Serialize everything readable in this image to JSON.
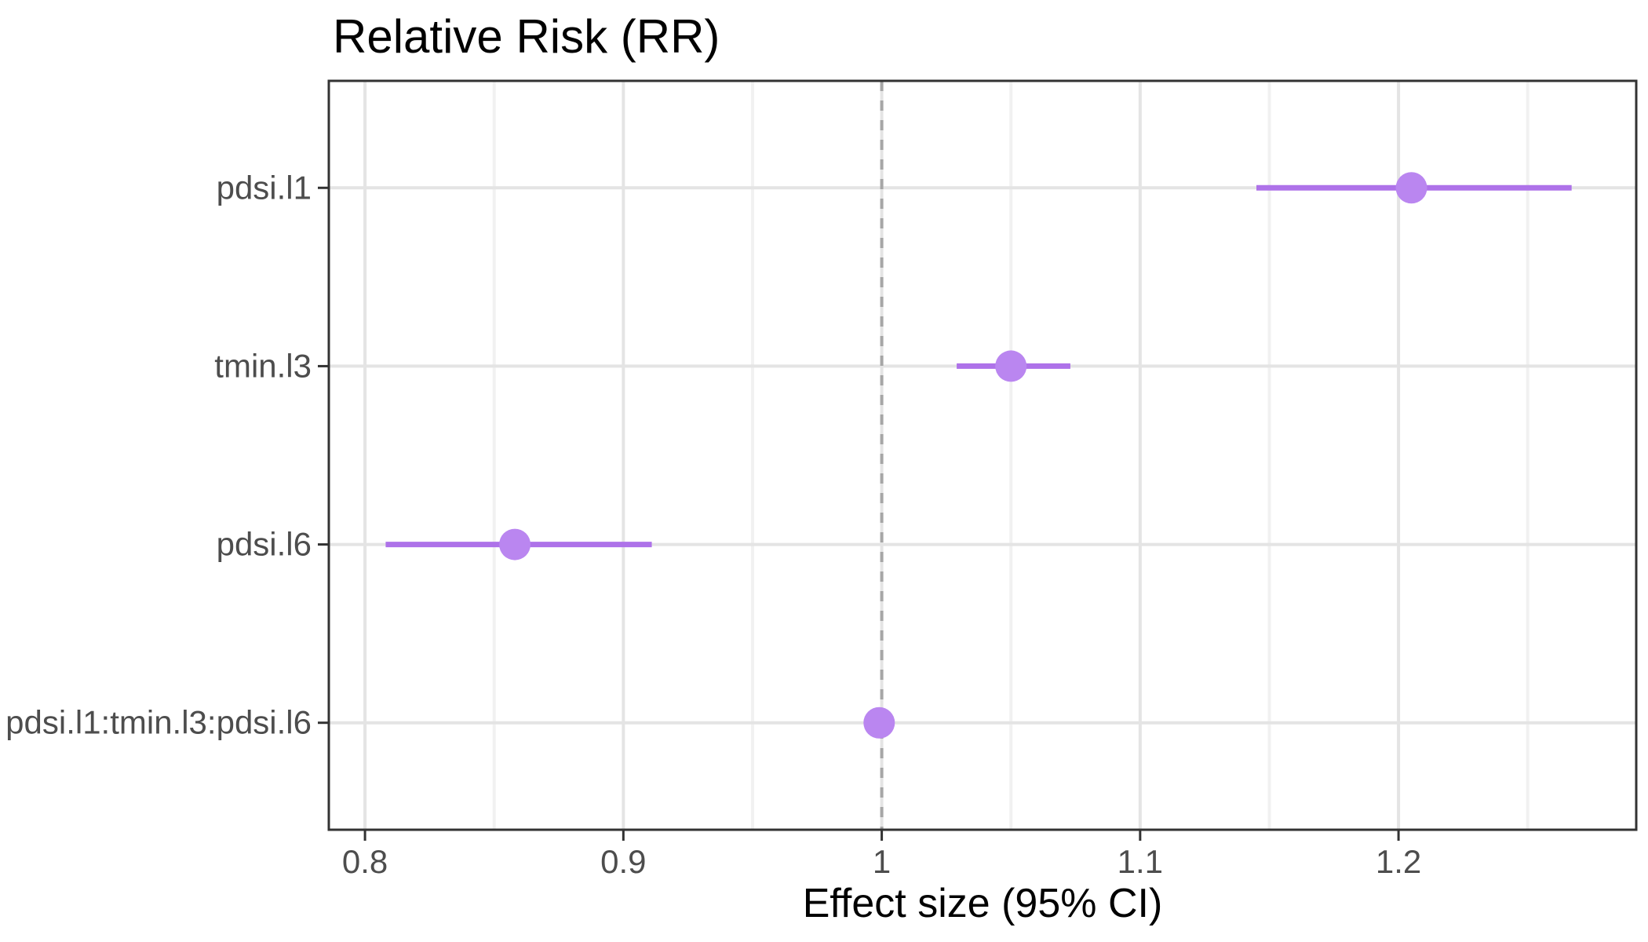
{
  "chart_data": {
    "type": "scatter",
    "subtype": "forest-pointrange",
    "title": "Relative Risk (RR)",
    "xlabel": "Effect size (95% CI)",
    "ylabel": "",
    "categories": [
      "pdsi.l1",
      "tmin.l3",
      "pdsi.l6",
      "pdsi.l1:tmin.l3:pdsi.l6"
    ],
    "series": [
      {
        "name": "pdsi.l1",
        "estimate": 1.205,
        "ci_low": 1.145,
        "ci_high": 1.267
      },
      {
        "name": "tmin.l3",
        "estimate": 1.05,
        "ci_low": 1.029,
        "ci_high": 1.073
      },
      {
        "name": "pdsi.l6",
        "estimate": 0.858,
        "ci_low": 0.808,
        "ci_high": 0.911
      },
      {
        "name": "pdsi.l1:tmin.l3:pdsi.l6",
        "estimate": 0.999,
        "ci_low": 0.994,
        "ci_high": 1.004
      }
    ],
    "reference_line_x": 1,
    "x_ticks": [
      0.8,
      0.9,
      1,
      1.1,
      1.2
    ],
    "x_tick_labels": [
      "0.8",
      "0.9",
      "1",
      "1.1",
      "1.2"
    ],
    "x_minor_ticks": [
      0.85,
      0.95,
      1.05,
      1.15,
      1.25
    ],
    "xlim": [
      0.786,
      1.292
    ],
    "grid": "vertical major+minor, horizontal major at categories",
    "legend": "none",
    "colors": {
      "point_fill": "#BA86F0",
      "ci_line": "#AE72E9",
      "reference_line": "#A6A6A6",
      "grid_major": "#E4E4E4",
      "grid_minor": "#F1F1F1",
      "panel_border": "#333333",
      "tick_mark": "#333333",
      "tick_label_text": "#4D4D4D",
      "title_text": "#000000"
    }
  }
}
